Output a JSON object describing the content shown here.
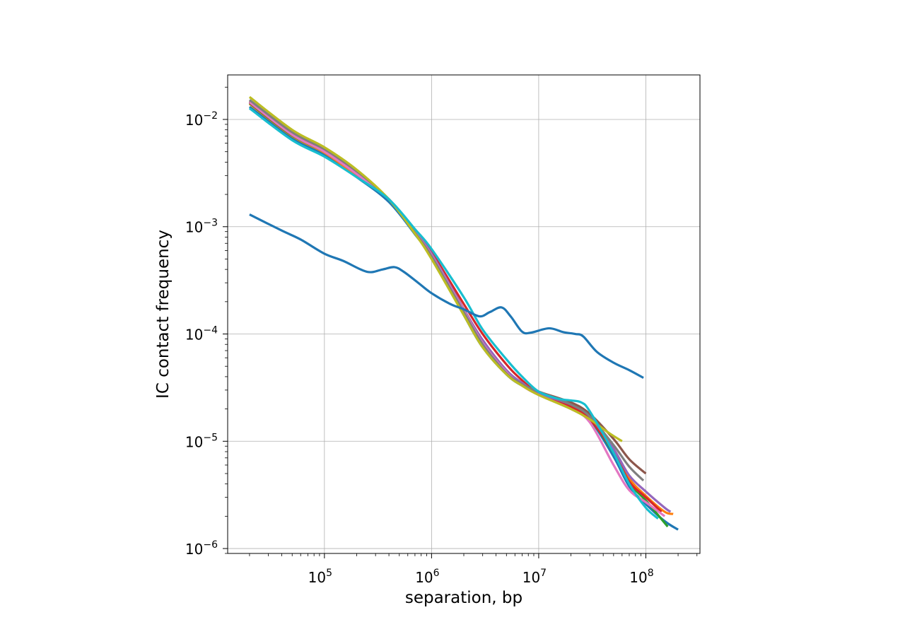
{
  "chart_data": {
    "type": "line",
    "title": "",
    "xlabel": "separation, bp",
    "ylabel": "IC contact frequency",
    "x_scale": "log",
    "y_scale": "log",
    "xlim": [
      12500,
      320000000
    ],
    "ylim": [
      9e-07,
      0.026
    ],
    "grid": true,
    "legend": "none",
    "x_ticks": [
      {
        "base": "10",
        "exp": "5",
        "value": 100000
      },
      {
        "base": "10",
        "exp": "6",
        "value": 1000000
      },
      {
        "base": "10",
        "exp": "7",
        "value": 10000000
      },
      {
        "base": "10",
        "exp": "8",
        "value": 100000000
      }
    ],
    "y_ticks": [
      {
        "base": "10",
        "exp": "−6",
        "value": 1e-06
      },
      {
        "base": "10",
        "exp": "−5",
        "value": 1e-05
      },
      {
        "base": "10",
        "exp": "−4",
        "value": 0.0001
      },
      {
        "base": "10",
        "exp": "−3",
        "value": 0.001
      },
      {
        "base": "10",
        "exp": "−2",
        "value": 0.01
      }
    ],
    "series": [
      {
        "color": "#1f77b4",
        "points": [
          [
            20000,
            0.0131
          ],
          [
            50000,
            0.0067
          ],
          [
            100000,
            0.0047
          ],
          [
            200000,
            0.0029
          ],
          [
            400000,
            0.0017
          ],
          [
            700000,
            0.00085
          ],
          [
            1000000,
            0.00052
          ],
          [
            2000000,
            0.00015
          ],
          [
            3000000,
            7.5e-05
          ],
          [
            5000000,
            4.2e-05
          ],
          [
            7000000,
            3.3e-05
          ],
          [
            10000000,
            2.8e-05
          ],
          [
            20000000,
            2.1e-05
          ],
          [
            30000000,
            1.6e-05
          ],
          [
            50000000,
            7.2e-06
          ],
          [
            70000000,
            3.8e-06
          ],
          [
            100000000,
            2.6e-06
          ],
          [
            150000000,
            1.8e-06
          ],
          [
            200000000,
            1.5e-06
          ]
        ]
      },
      {
        "color": "#ff7f0e",
        "points": [
          [
            20000,
            0.014
          ],
          [
            50000,
            0.007
          ],
          [
            100000,
            0.0049
          ],
          [
            200000,
            0.003
          ],
          [
            400000,
            0.0018
          ],
          [
            700000,
            0.0009
          ],
          [
            1000000,
            0.00055
          ],
          [
            2000000,
            0.00017
          ],
          [
            3000000,
            8.5e-05
          ],
          [
            5000000,
            4.5e-05
          ],
          [
            7000000,
            3.5e-05
          ],
          [
            10000000,
            2.9e-05
          ],
          [
            20000000,
            2.2e-05
          ],
          [
            30000000,
            1.7e-05
          ],
          [
            50000000,
            8.5e-06
          ],
          [
            70000000,
            4.5e-06
          ],
          [
            100000000,
            3.1e-06
          ],
          [
            150000000,
            2.2e-06
          ],
          [
            180000000,
            2.1e-06
          ]
        ]
      },
      {
        "color": "#2ca02c",
        "points": [
          [
            20000,
            0.0142
          ],
          [
            50000,
            0.0071
          ],
          [
            100000,
            0.005
          ],
          [
            200000,
            0.0031
          ],
          [
            400000,
            0.0018
          ],
          [
            700000,
            0.00088
          ],
          [
            1000000,
            0.00054
          ],
          [
            2000000,
            0.000165
          ],
          [
            3000000,
            8e-05
          ],
          [
            5000000,
            4.4e-05
          ],
          [
            7000000,
            3.4e-05
          ],
          [
            10000000,
            2.9e-05
          ],
          [
            20000000,
            2.2e-05
          ],
          [
            30000000,
            1.6e-05
          ],
          [
            50000000,
            7.8e-06
          ],
          [
            70000000,
            4.1e-06
          ],
          [
            100000000,
            2.8e-06
          ],
          [
            160000000,
            1.6e-06
          ]
        ]
      },
      {
        "color": "#d62728",
        "points": [
          [
            20000,
            0.0144
          ],
          [
            50000,
            0.0072
          ],
          [
            100000,
            0.0051
          ],
          [
            200000,
            0.0031
          ],
          [
            400000,
            0.0018
          ],
          [
            700000,
            0.00092
          ],
          [
            1000000,
            0.00058
          ],
          [
            2000000,
            0.00019
          ],
          [
            3000000,
            0.0001
          ],
          [
            5000000,
            5.2e-05
          ],
          [
            7000000,
            3.7e-05
          ],
          [
            10000000,
            2.8e-05
          ],
          [
            20000000,
            2.1e-05
          ],
          [
            30000000,
            1.6e-05
          ],
          [
            50000000,
            8e-06
          ],
          [
            70000000,
            4.2e-06
          ],
          [
            100000000,
            3e-06
          ],
          [
            140000000,
            2.2e-06
          ]
        ]
      },
      {
        "color": "#9467bd",
        "points": [
          [
            20000,
            0.0146
          ],
          [
            50000,
            0.0073
          ],
          [
            100000,
            0.0051
          ],
          [
            200000,
            0.0032
          ],
          [
            400000,
            0.0018
          ],
          [
            700000,
            0.0009
          ],
          [
            1000000,
            0.00056
          ],
          [
            2000000,
            0.00017
          ],
          [
            3000000,
            8.8e-05
          ],
          [
            5000000,
            4.6e-05
          ],
          [
            7000000,
            3.5e-05
          ],
          [
            10000000,
            2.8e-05
          ],
          [
            20000000,
            2.2e-05
          ],
          [
            30000000,
            1.7e-05
          ],
          [
            50000000,
            8.5e-06
          ],
          [
            70000000,
            4.8e-06
          ],
          [
            100000000,
            3.4e-06
          ],
          [
            150000000,
            2.4e-06
          ],
          [
            170000000,
            2.2e-06
          ]
        ]
      },
      {
        "color": "#8c564b",
        "points": [
          [
            20000,
            0.0148
          ],
          [
            50000,
            0.0074
          ],
          [
            100000,
            0.0052
          ],
          [
            200000,
            0.0032
          ],
          [
            400000,
            0.0018
          ],
          [
            700000,
            0.00088
          ],
          [
            1000000,
            0.00053
          ],
          [
            2000000,
            0.00016
          ],
          [
            3000000,
            8e-05
          ],
          [
            5000000,
            4.3e-05
          ],
          [
            7000000,
            3.4e-05
          ],
          [
            10000000,
            2.9e-05
          ],
          [
            20000000,
            2.3e-05
          ],
          [
            30000000,
            1.8e-05
          ],
          [
            50000000,
            1.05e-05
          ],
          [
            70000000,
            6.8e-06
          ],
          [
            100000000,
            5e-06
          ]
        ]
      },
      {
        "color": "#e377c2",
        "points": [
          [
            20000,
            0.0145
          ],
          [
            50000,
            0.0072
          ],
          [
            100000,
            0.005
          ],
          [
            200000,
            0.0031
          ],
          [
            400000,
            0.0018
          ],
          [
            700000,
            0.00089
          ],
          [
            1000000,
            0.00054
          ],
          [
            2000000,
            0.000165
          ],
          [
            3000000,
            8.2e-05
          ],
          [
            5000000,
            4.4e-05
          ],
          [
            7000000,
            3.3e-05
          ],
          [
            10000000,
            2.7e-05
          ],
          [
            20000000,
            2e-05
          ],
          [
            30000000,
            1.5e-05
          ],
          [
            50000000,
            6e-06
          ],
          [
            70000000,
            3.5e-06
          ],
          [
            100000000,
            2.7e-06
          ],
          [
            150000000,
            2e-06
          ]
        ]
      },
      {
        "color": "#7f7f7f",
        "points": [
          [
            20000,
            0.0152
          ],
          [
            50000,
            0.0076
          ],
          [
            100000,
            0.0053
          ],
          [
            200000,
            0.0033
          ],
          [
            400000,
            0.0018
          ],
          [
            700000,
            0.00088
          ],
          [
            1000000,
            0.00053
          ],
          [
            2000000,
            0.00016
          ],
          [
            3000000,
            8e-05
          ],
          [
            5000000,
            4.3e-05
          ],
          [
            7000000,
            3.4e-05
          ],
          [
            10000000,
            2.9e-05
          ],
          [
            20000000,
            2.2e-05
          ],
          [
            30000000,
            1.7e-05
          ],
          [
            50000000,
            9.2e-06
          ],
          [
            70000000,
            5.8e-06
          ],
          [
            95000000,
            4.3e-06
          ]
        ]
      },
      {
        "color": "#bcbd22",
        "points": [
          [
            20000,
            0.0162
          ],
          [
            50000,
            0.008
          ],
          [
            100000,
            0.0055
          ],
          [
            200000,
            0.0034
          ],
          [
            400000,
            0.0018
          ],
          [
            700000,
            0.00086
          ],
          [
            1000000,
            0.0005
          ],
          [
            2000000,
            0.00015
          ],
          [
            3000000,
            7.5e-05
          ],
          [
            5000000,
            4.2e-05
          ],
          [
            7000000,
            3.3e-05
          ],
          [
            10000000,
            2.7e-05
          ],
          [
            20000000,
            2e-05
          ],
          [
            30000000,
            1.6e-05
          ],
          [
            45000000,
            1.2e-05
          ],
          [
            60000000,
            1e-05
          ]
        ]
      },
      {
        "color": "#17becf",
        "points": [
          [
            20000,
            0.0127
          ],
          [
            50000,
            0.0064
          ],
          [
            100000,
            0.0045
          ],
          [
            200000,
            0.0029
          ],
          [
            400000,
            0.0018
          ],
          [
            700000,
            0.00095
          ],
          [
            1000000,
            0.00062
          ],
          [
            2000000,
            0.00022
          ],
          [
            3000000,
            0.00011
          ],
          [
            5000000,
            5.8e-05
          ],
          [
            7000000,
            4e-05
          ],
          [
            10000000,
            2.9e-05
          ],
          [
            15000000,
            2.5e-05
          ],
          [
            20000000,
            2.4e-05
          ],
          [
            25000000,
            2.3e-05
          ],
          [
            30000000,
            1.9e-05
          ],
          [
            50000000,
            7.8e-06
          ],
          [
            70000000,
            4e-06
          ],
          [
            100000000,
            2.4e-06
          ],
          [
            130000000,
            1.9e-06
          ]
        ]
      },
      {
        "color": "#1f77b4",
        "points": [
          [
            20000,
            0.0013
          ],
          [
            40000,
            0.00092
          ],
          [
            60000,
            0.00076
          ],
          [
            100000,
            0.00056
          ],
          [
            150000,
            0.00048
          ],
          [
            250000,
            0.00038
          ],
          [
            350000,
            0.0004
          ],
          [
            450000,
            0.00042
          ],
          [
            550000,
            0.00038
          ],
          [
            750000,
            0.0003
          ],
          [
            1000000,
            0.00024
          ],
          [
            1500000,
            0.00019
          ],
          [
            2000000,
            0.00017
          ],
          [
            2800000,
            0.000146
          ],
          [
            3500000,
            0.00016
          ],
          [
            4500000,
            0.000177
          ],
          [
            5500000,
            0.000145
          ],
          [
            7000000,
            0.000105
          ],
          [
            8500000,
            0.000103
          ],
          [
            12500000,
            0.000113
          ],
          [
            17000000,
            0.000104
          ],
          [
            22000000,
            0.0001
          ],
          [
            26000000,
            9.5e-05
          ],
          [
            35000000,
            6.8e-05
          ],
          [
            50000000,
            5.4e-05
          ],
          [
            70000000,
            4.6e-05
          ],
          [
            95000000,
            3.9e-05
          ]
        ]
      }
    ]
  }
}
